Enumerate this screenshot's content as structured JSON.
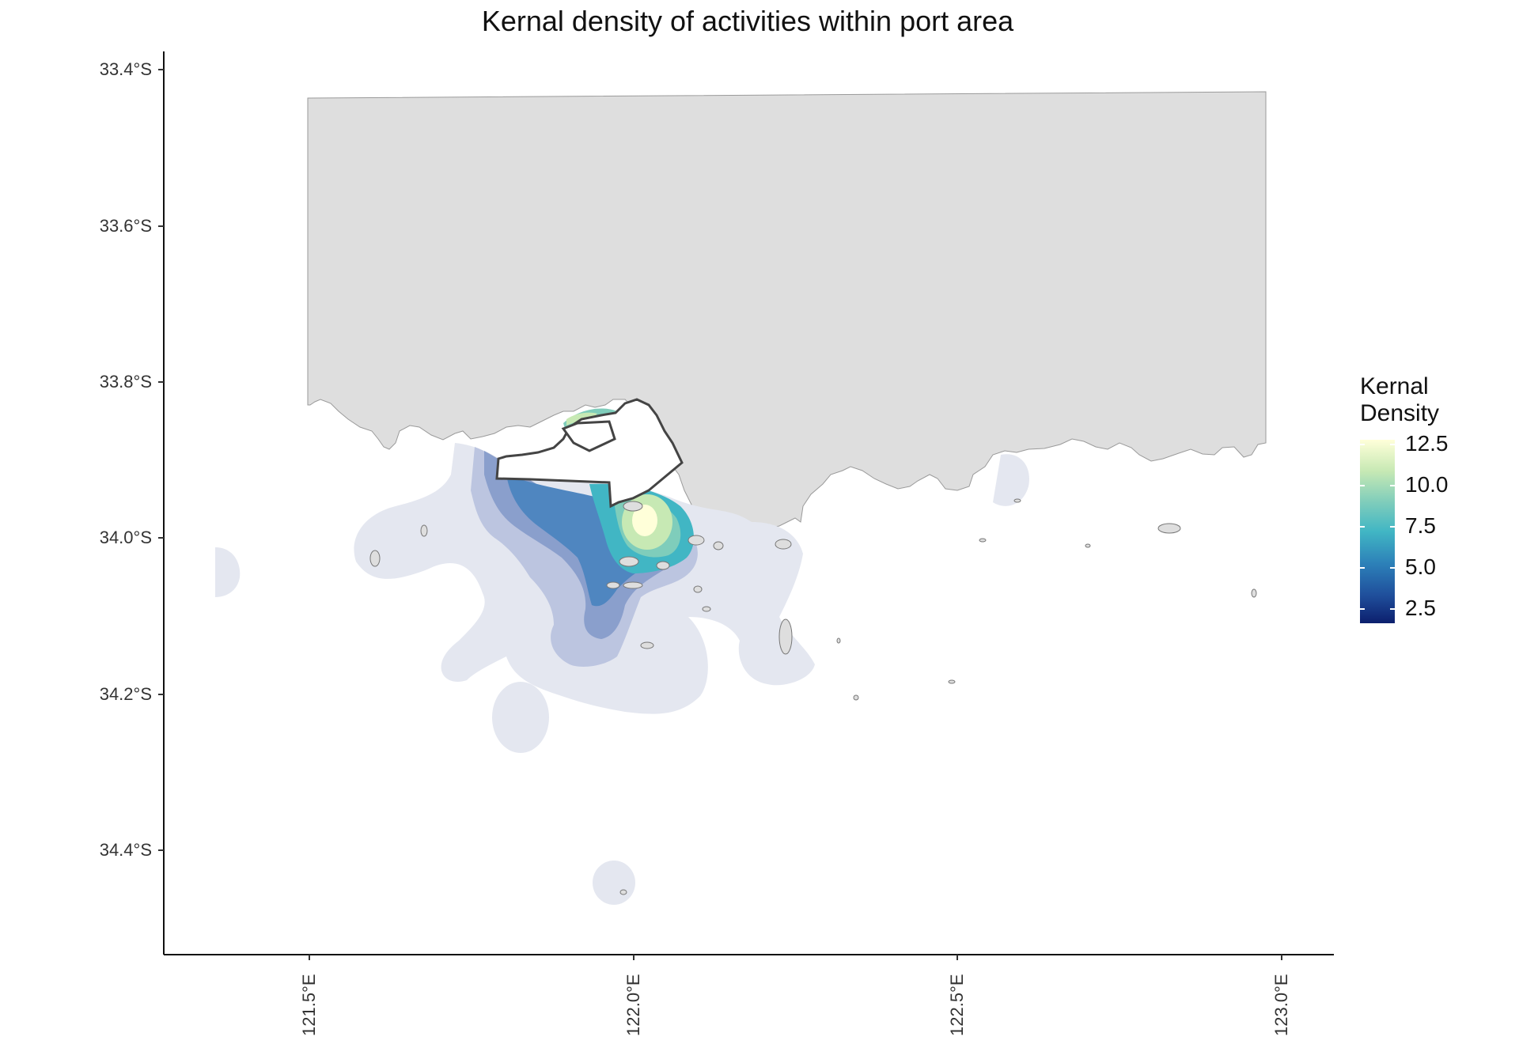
{
  "title": "Kernal density of activities within port area",
  "y_axis": {
    "ticks": [
      "33.4°S",
      "33.6°S",
      "33.8°S",
      "34.0°S",
      "34.2°S",
      "34.4°S"
    ]
  },
  "x_axis": {
    "ticks": [
      "121.5°E",
      "122.0°E",
      "122.5°E",
      "123.0°E"
    ]
  },
  "legend": {
    "title_line1": "Kernal",
    "title_line2": "Density",
    "labels": [
      "12.5",
      "10.0",
      "7.5",
      "5.0",
      "2.5"
    ]
  },
  "colors": {
    "land": "#dedede",
    "low_density": "#e4e7f0",
    "mid_density": "#8a9fcc",
    "high_density": "#41b6c4",
    "peak_density": "#ffffd9",
    "port_outline": "#444444"
  },
  "chart_data": {
    "type": "heatmap",
    "title": "Kernal density of activities within port area",
    "xlim": [
      121.28,
      123.08
    ],
    "ylim": [
      34.53,
      33.38
    ],
    "x_ticks": [
      121.5,
      122.0,
      122.5,
      123.0
    ],
    "y_ticks": [
      33.4,
      33.6,
      33.8,
      34.0,
      34.2,
      34.4
    ],
    "legend_range": [
      1,
      13
    ],
    "legend_placement": "right",
    "grid": false,
    "peak": {
      "lon": 122.01,
      "lat": 33.97,
      "value": 12.5
    }
  }
}
